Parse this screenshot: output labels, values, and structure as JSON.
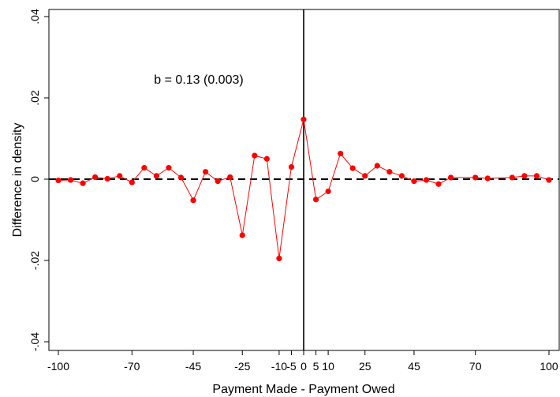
{
  "chart_data": {
    "type": "line",
    "title": "",
    "xlabel": "Payment Made - Payment Owed",
    "ylabel": "Difference in density",
    "xlim": [
      -100,
      100
    ],
    "ylim": [
      -0.04,
      0.04
    ],
    "xticks": [
      {
        "value": -100,
        "label": "-100"
      },
      {
        "value": -70,
        "label": "-70"
      },
      {
        "value": -45,
        "label": "-45"
      },
      {
        "value": -25,
        "label": "-25"
      },
      {
        "value": -10,
        "label": "-10"
      },
      {
        "value": -5,
        "label": "-5"
      },
      {
        "value": 0,
        "label": "0"
      },
      {
        "value": 5,
        "label": "5"
      },
      {
        "value": 10,
        "label": "10"
      },
      {
        "value": 25,
        "label": "25"
      },
      {
        "value": 45,
        "label": "45"
      },
      {
        "value": 70,
        "label": "70"
      },
      {
        "value": 100,
        "label": "100"
      }
    ],
    "yticks": [
      {
        "value": -0.04,
        "label": "-.04"
      },
      {
        "value": -0.02,
        "label": "-.02"
      },
      {
        "value": 0,
        "label": "0"
      },
      {
        "value": 0.02,
        "label": ".02"
      },
      {
        "value": 0.04,
        "label": ".04"
      }
    ],
    "annotation": "b = 0.13 (0.003)",
    "series": [
      {
        "color": "#ff0000",
        "x": [
          -100,
          -95,
          -90,
          -85,
          -80,
          -75,
          -70,
          -65,
          -60,
          -55,
          -50,
          -45,
          -40,
          -35,
          -30,
          -25,
          -20,
          -15,
          -10,
          -5,
          0,
          5,
          10,
          15,
          20,
          25,
          30,
          35,
          40,
          45,
          50,
          55,
          60,
          70,
          75,
          85,
          90,
          95,
          100
        ],
        "y": [
          -0.0003,
          -0.0002,
          -0.001,
          0.0005,
          0.0001,
          0.0008,
          -0.0008,
          0.0028,
          0.0008,
          0.0028,
          0.0004,
          -0.0052,
          0.0018,
          -0.0005,
          0.0005,
          -0.0138,
          0.0058,
          0.005,
          -0.0195,
          0.003,
          0.0147,
          -0.005,
          -0.003,
          0.0063,
          0.0027,
          0.0008,
          0.0033,
          0.0018,
          0.0008,
          -0.0005,
          -0.0002,
          -0.0012,
          0.0004,
          0.0004,
          0.0002,
          0.0004,
          0.0008,
          0.0008,
          -0.0002
        ]
      }
    ],
    "reference_lines": [
      {
        "axis": "y",
        "value": 0,
        "style": "dashed",
        "color": "#000000"
      },
      {
        "axis": "x",
        "value": 0,
        "style": "solid",
        "color": "#000000"
      }
    ],
    "grid": false,
    "legend": "none"
  }
}
